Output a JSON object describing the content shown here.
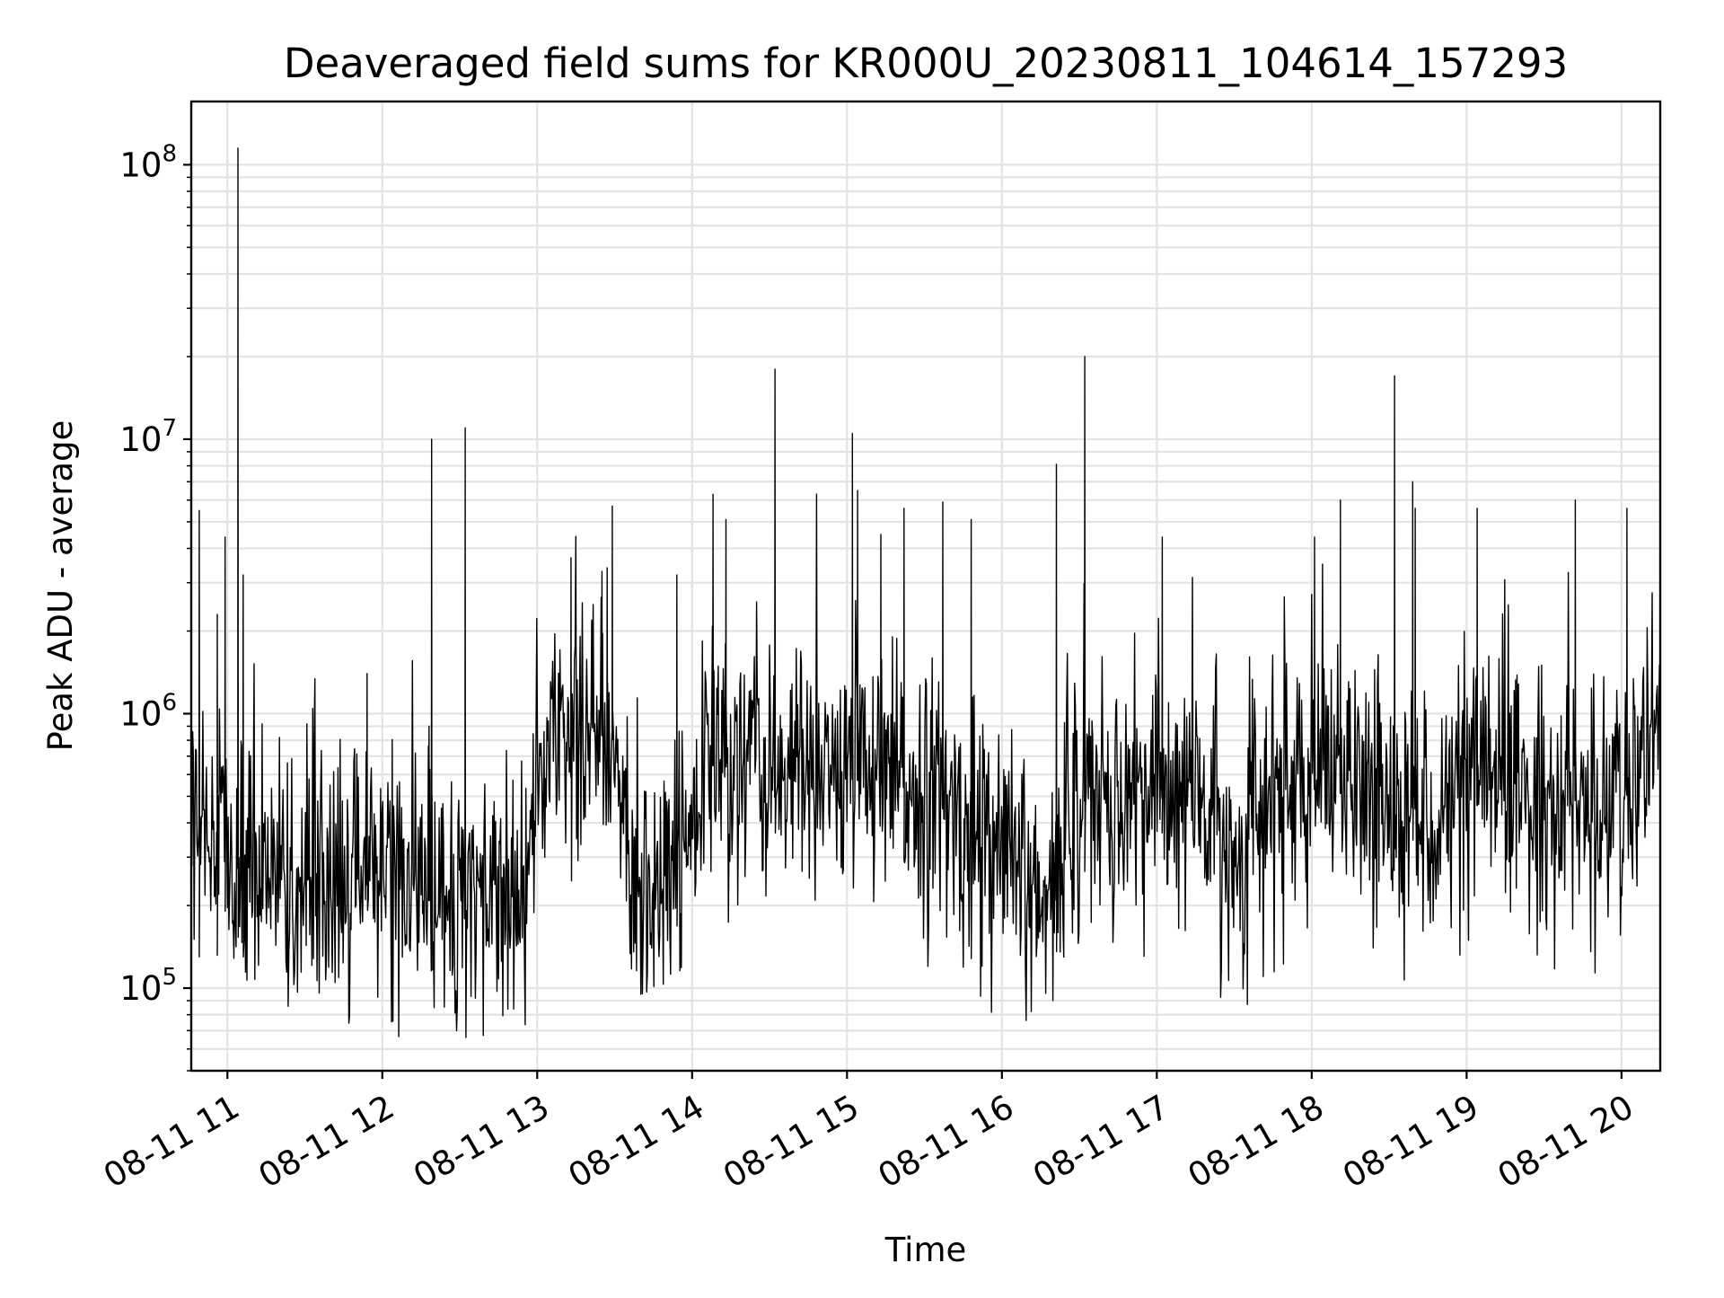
{
  "chart_data": {
    "type": "line",
    "title": "Deaveraged field sums for KR000U_20230811_104614_157293",
    "xlabel": "Time",
    "ylabel": "Peak ADU - average",
    "yscale": "log",
    "xlim": [
      "2023-08-11 10:46",
      "2023-08-11 20:15"
    ],
    "ylim": [
      50000,
      170000000
    ],
    "grid": true,
    "legend": "none",
    "x_ticks": [
      "08-11 11",
      "08-11 12",
      "08-11 13",
      "08-11 14",
      "08-11 15",
      "08-11 16",
      "08-11 17",
      "08-11 18",
      "08-11 19",
      "08-11 20"
    ],
    "x_tick_times": [
      "2023-08-11 11:00",
      "2023-08-11 12:00",
      "2023-08-11 13:00",
      "2023-08-11 14:00",
      "2023-08-11 15:00",
      "2023-08-11 16:00",
      "2023-08-11 17:00",
      "2023-08-11 18:00",
      "2023-08-11 19:00",
      "2023-08-11 20:00"
    ],
    "y_ticks": [
      {
        "value": 100000,
        "base": "10",
        "exp": "5"
      },
      {
        "value": 1000000,
        "base": "10",
        "exp": "6"
      },
      {
        "value": 10000000,
        "base": "10",
        "exp": "7"
      },
      {
        "value": 100000000,
        "base": "10",
        "exp": "8"
      }
    ],
    "series": [
      {
        "color": "#000000",
        "baseline": [
          [
            "2023-08-11 10:46",
            420000
          ],
          [
            "2023-08-11 11:00",
            280000
          ],
          [
            "2023-08-11 11:30",
            230000
          ],
          [
            "2023-08-11 12:00",
            240000
          ],
          [
            "2023-08-11 12:30",
            190000
          ],
          [
            "2023-08-11 12:55",
            210000
          ],
          [
            "2023-08-11 13:00",
            600000
          ],
          [
            "2023-08-11 13:15",
            900000
          ],
          [
            "2023-08-11 13:30",
            800000
          ],
          [
            "2023-08-11 13:38",
            220000
          ],
          [
            "2023-08-11 13:55",
            250000
          ],
          [
            "2023-08-11 14:00",
            350000
          ],
          [
            "2023-08-11 14:05",
            650000
          ],
          [
            "2023-08-11 14:30",
            620000
          ],
          [
            "2023-08-11 15:00",
            580000
          ],
          [
            "2023-08-11 15:30",
            520000
          ],
          [
            "2023-08-11 16:00",
            280000
          ],
          [
            "2023-08-11 16:20",
            170000
          ],
          [
            "2023-08-11 16:25",
            480000
          ],
          [
            "2023-08-11 16:45",
            480000
          ],
          [
            "2023-08-11 17:15",
            500000
          ],
          [
            "2023-08-11 17:30",
            280000
          ],
          [
            "2023-08-11 17:50",
            550000
          ],
          [
            "2023-08-11 18:30",
            480000
          ],
          [
            "2023-08-11 18:50",
            420000
          ],
          [
            "2023-08-11 19:15",
            500000
          ],
          [
            "2023-08-11 19:45",
            480000
          ],
          [
            "2023-08-11 19:55",
            380000
          ],
          [
            "2023-08-11 20:10",
            700000
          ],
          [
            "2023-08-11 20:15",
            800000
          ]
        ],
        "spikes": [
          [
            "2023-08-11 10:49",
            5500000
          ],
          [
            "2023-08-11 10:56",
            2300000
          ],
          [
            "2023-08-11 10:59",
            4400000
          ],
          [
            "2023-08-11 11:04",
            115000000
          ],
          [
            "2023-08-11 11:06",
            3200000
          ],
          [
            "2023-08-11 11:54",
            1400000
          ],
          [
            "2023-08-11 12:18",
            900000
          ],
          [
            "2023-08-11 12:19",
            10000000
          ],
          [
            "2023-08-11 12:32",
            11000000
          ],
          [
            "2023-08-11 13:13",
            3700000
          ],
          [
            "2023-08-11 13:25",
            3300000
          ],
          [
            "2023-08-11 13:27",
            3400000
          ],
          [
            "2023-08-11 13:29",
            5700000
          ],
          [
            "2023-08-11 13:54",
            3200000
          ],
          [
            "2023-08-11 14:08",
            6300000
          ],
          [
            "2023-08-11 14:13",
            5100000
          ],
          [
            "2023-08-11 14:32",
            18000000
          ],
          [
            "2023-08-11 15:02",
            10500000
          ],
          [
            "2023-08-11 15:04",
            6500000
          ],
          [
            "2023-08-11 15:13",
            4500000
          ],
          [
            "2023-08-11 15:22",
            5600000
          ],
          [
            "2023-08-11 15:37",
            5900000
          ],
          [
            "2023-08-11 15:48",
            5100000
          ],
          [
            "2023-08-11 16:21",
            8100000
          ],
          [
            "2023-08-11 16:32",
            20000000
          ],
          [
            "2023-08-11 17:02",
            4400000
          ],
          [
            "2023-08-11 18:01",
            4400000
          ],
          [
            "2023-08-11 18:11",
            6000000
          ],
          [
            "2023-08-11 18:32",
            17000000
          ],
          [
            "2023-08-11 18:39",
            7000000
          ],
          [
            "2023-08-11 18:40",
            5600000
          ],
          [
            "2023-08-11 19:04",
            5600000
          ],
          [
            "2023-08-11 19:42",
            6000000
          ],
          [
            "2023-08-11 20:02",
            5600000
          ]
        ]
      }
    ]
  }
}
